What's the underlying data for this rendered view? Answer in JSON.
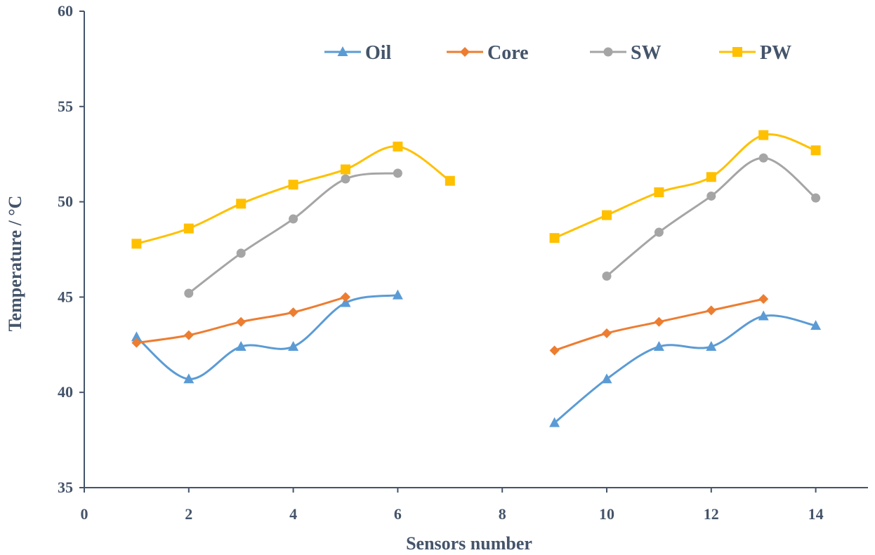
{
  "chart_data": {
    "type": "line",
    "title": "",
    "xlabel": "Sensors number",
    "ylabel": "Temperature  / °C",
    "xlim": [
      0,
      15
    ],
    "ylim": [
      35,
      60
    ],
    "xticks": [
      0,
      2,
      4,
      6,
      8,
      10,
      12,
      14
    ],
    "yticks": [
      35,
      40,
      45,
      50,
      55,
      60
    ],
    "grid": false,
    "legend_position": "top",
    "series": [
      {
        "name": "Oil",
        "color": "#5b9bd5",
        "marker": "triangle",
        "segments": [
          {
            "x": [
              1,
              2,
              3,
              4,
              5,
              6
            ],
            "y": [
              42.9,
              40.7,
              42.4,
              42.4,
              44.7,
              45.1
            ]
          },
          {
            "x": [
              9,
              10,
              11,
              12,
              13,
              14
            ],
            "y": [
              38.4,
              40.7,
              42.4,
              42.4,
              44.0,
              43.5
            ]
          }
        ]
      },
      {
        "name": "Core",
        "color": "#ed7d31",
        "marker": "diamond",
        "segments": [
          {
            "x": [
              1,
              2,
              3,
              4,
              5
            ],
            "y": [
              42.6,
              43.0,
              43.7,
              44.2,
              45.0
            ]
          },
          {
            "x": [
              9,
              10,
              11,
              12,
              13
            ],
            "y": [
              42.2,
              43.1,
              43.7,
              44.3,
              44.9
            ]
          }
        ]
      },
      {
        "name": "SW",
        "color": "#a5a5a5",
        "marker": "circle",
        "segments": [
          {
            "x": [
              2,
              3,
              4,
              5,
              6
            ],
            "y": [
              45.2,
              47.3,
              49.1,
              51.2,
              51.5
            ]
          },
          {
            "x": [
              10,
              11,
              12,
              13,
              14
            ],
            "y": [
              46.1,
              48.4,
              50.3,
              52.3,
              50.2
            ]
          }
        ]
      },
      {
        "name": "PW",
        "color": "#ffc000",
        "marker": "square",
        "segments": [
          {
            "x": [
              1,
              2,
              3,
              4,
              5,
              6,
              7
            ],
            "y": [
              47.8,
              48.6,
              49.9,
              50.9,
              51.7,
              52.9,
              51.1
            ]
          },
          {
            "x": [
              9,
              10,
              11,
              12,
              13,
              14
            ],
            "y": [
              48.1,
              49.3,
              50.5,
              51.3,
              53.5,
              52.7
            ]
          }
        ]
      }
    ]
  },
  "colors": {
    "axis": "#44546a",
    "text": "#44546a",
    "background": "#ffffff"
  }
}
